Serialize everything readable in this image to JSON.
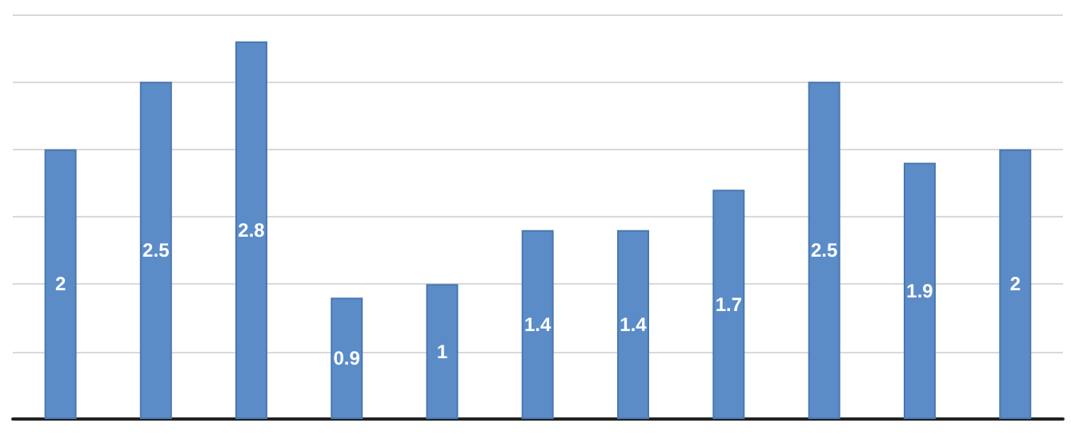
{
  "chart_data": [
    {
      "type": "bar",
      "categories": [
        null,
        null,
        null,
        null,
        null
      ],
      "values": [
        2,
        2.5,
        2.8,
        0.9,
        1
      ],
      "color": "#5b8cc8",
      "ylim": [
        0,
        3
      ],
      "yticks": [
        0,
        0.5,
        1,
        1.5,
        2,
        2.5,
        3
      ],
      "grid": "y",
      "tick_labels": false,
      "data_labels": true
    },
    {
      "type": "bar",
      "categories": [
        null,
        null,
        null,
        null,
        null,
        null
      ],
      "values": [
        1.4,
        1.4,
        1.7,
        2.5,
        1.9,
        2
      ],
      "color": "#5b8cc8",
      "ylim": [
        0,
        3
      ],
      "yticks": [
        0,
        0.5,
        1,
        1.5,
        2,
        2.5,
        3
      ],
      "grid": "y",
      "tick_labels": false,
      "data_labels": true
    }
  ]
}
